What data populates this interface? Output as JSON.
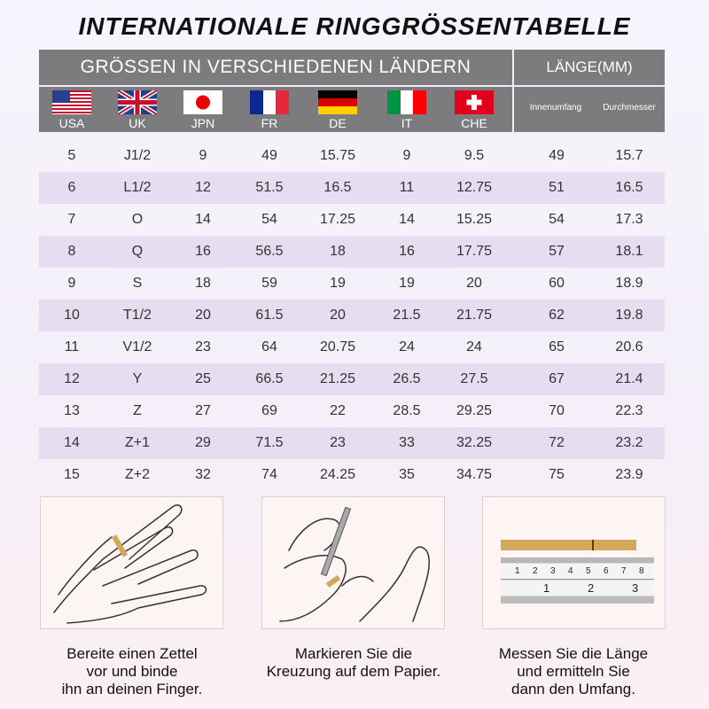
{
  "title": "INTERNATIONALE RINGGRÖSSENTABELLE",
  "header": {
    "countries_title": "GRÖSSEN IN VERSCHIEDENEN LÄNDERN",
    "length_title": "LÄNGE(MM)",
    "countries": [
      {
        "label": "USA",
        "flag": "us-flag"
      },
      {
        "label": "UK",
        "flag": "uk-flag"
      },
      {
        "label": "JPN",
        "flag": "japan-flag"
      },
      {
        "label": "FR",
        "flag": "france-flag"
      },
      {
        "label": "DE",
        "flag": "germany-flag"
      },
      {
        "label": "IT",
        "flag": "italy-flag"
      },
      {
        "label": "CHE",
        "flag": "switzerland-flag"
      }
    ],
    "length_cols": [
      "Innenumfang",
      "Durchmesser"
    ]
  },
  "rows": [
    [
      "5",
      "J1/2",
      "9",
      "49",
      "15.75",
      "9",
      "9.5",
      "49",
      "15.7"
    ],
    [
      "6",
      "L1/2",
      "12",
      "51.5",
      "16.5",
      "11",
      "12.75",
      "51",
      "16.5"
    ],
    [
      "7",
      "O",
      "14",
      "54",
      "17.25",
      "14",
      "15.25",
      "54",
      "17.3"
    ],
    [
      "8",
      "Q",
      "16",
      "56.5",
      "18",
      "16",
      "17.75",
      "57",
      "18.1"
    ],
    [
      "9",
      "S",
      "18",
      "59",
      "19",
      "19",
      "20",
      "60",
      "18.9"
    ],
    [
      "10",
      "T1/2",
      "20",
      "61.5",
      "20",
      "21.5",
      "21.75",
      "62",
      "19.8"
    ],
    [
      "11",
      "V1/2",
      "23",
      "64",
      "20.75",
      "24",
      "24",
      "65",
      "20.6"
    ],
    [
      "12",
      "Y",
      "25",
      "66.5",
      "21.25",
      "26.5",
      "27.5",
      "67",
      "21.4"
    ],
    [
      "13",
      "Z",
      "27",
      "69",
      "22",
      "28.5",
      "29.25",
      "70",
      "22.3"
    ],
    [
      "14",
      "Z+1",
      "29",
      "71.5",
      "23",
      "33",
      "32.25",
      "72",
      "23.2"
    ],
    [
      "15",
      "Z+2",
      "32",
      "74",
      "24.25",
      "35",
      "34.75",
      "75",
      "23.9"
    ]
  ],
  "steps": [
    {
      "lines": [
        "Bereite einen Zettel",
        "vor und binde",
        "ihn an deinen Finger."
      ],
      "icon": "hand-with-paper-strip-illustration"
    },
    {
      "lines": [
        "Markieren Sie die",
        "Kreuzung auf dem Papier."
      ],
      "icon": "hand-marking-pen-illustration"
    },
    {
      "lines": [
        "Messen Sie die Länge",
        "und ermitteln Sie",
        "dann den Umfang."
      ],
      "icon": "ruler-with-strip-illustration"
    }
  ],
  "ruler": {
    "top_ticks": [
      "1",
      "2",
      "3",
      "4",
      "5",
      "6",
      "7",
      "8"
    ],
    "bottom_ticks": [
      "1",
      "2",
      "3"
    ]
  },
  "colors": {
    "header": "#7c7b7d",
    "row_alt": "#e6def0",
    "strip": "#d4a85a"
  }
}
